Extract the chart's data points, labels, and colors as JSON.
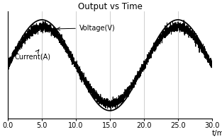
{
  "title": "Output vs Time",
  "xlabel": "t/ms",
  "xlim": [
    0.0,
    30.0
  ],
  "ylim": [
    -1.18,
    1.18
  ],
  "xticks": [
    0.0,
    5.0,
    10.0,
    15.0,
    20.0,
    25.0,
    30.0
  ],
  "xtick_labels": [
    "0.0",
    "5.0",
    "10.0",
    "15.0",
    "20.0",
    "25.0",
    "30.0"
  ],
  "voltage_amplitude": 1.0,
  "current_amplitude": 0.85,
  "period": 20.0,
  "peak_time": 5.0,
  "noise_amplitude": 0.05,
  "voltage_color": "#000000",
  "current_color": "#000000",
  "background_color": "#ffffff",
  "grid_color": "#bbbbbb",
  "title_fontsize": 8.5,
  "label_fontsize": 7.5,
  "tick_fontsize": 7,
  "voltage_label": "Voltage(V)",
  "current_label": "Current(A)",
  "voltage_lw": 1.3,
  "current_lw": 0.7,
  "n_points": 4000
}
